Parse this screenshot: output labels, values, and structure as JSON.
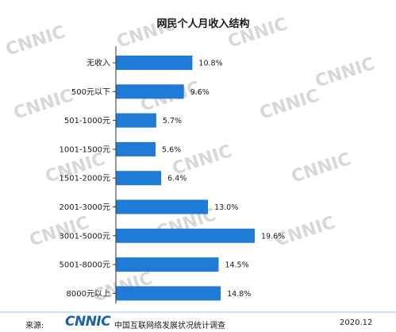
{
  "chart_data": {
    "type": "bar",
    "orientation": "horizontal",
    "title": "网民个人月收入结构",
    "categories": [
      "无收入",
      "500元以下",
      "501-1000元",
      "1001-1500元",
      "1501-2000元",
      "2001-3000元",
      "3001-5000元",
      "5001-8000元",
      "8000元以上"
    ],
    "values": [
      10.8,
      9.6,
      5.7,
      5.6,
      6.4,
      13.0,
      19.6,
      14.5,
      14.8
    ],
    "value_labels": [
      "10.8%",
      "9.6%",
      "5.7%",
      "5.6%",
      "6.4%",
      "13.0%",
      "19.6%",
      "14.5%",
      "14.8%"
    ],
    "xlim": [
      0,
      25
    ],
    "bar_color": "#1f7bd6",
    "grid": false,
    "legend": "none"
  },
  "watermark": "CNNIC",
  "footer": {
    "source_label": "来源:",
    "logo": "CNNIC",
    "org": "中国互联网络发展状况统计调查",
    "date": "2020.12"
  }
}
